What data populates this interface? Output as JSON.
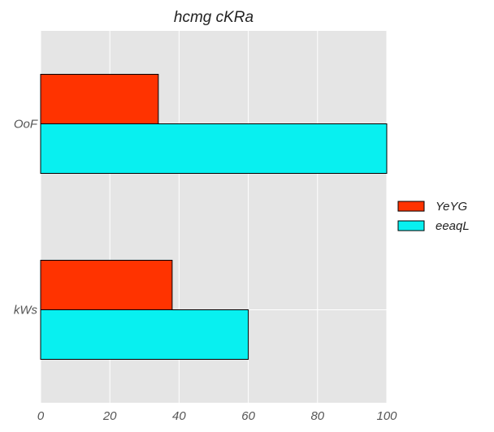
{
  "chart_data": {
    "type": "bar",
    "orientation": "horizontal",
    "title": "hcmg cKRa",
    "xlabel": "",
    "ylabel": "",
    "categories": [
      "OoF",
      "kWs"
    ],
    "series": [
      {
        "name": "YeYG",
        "color": "#ff3300",
        "values": [
          34,
          38
        ]
      },
      {
        "name": "eeaqL",
        "color": "#08f0f0",
        "values": [
          100,
          60
        ]
      }
    ],
    "xlim": [
      0,
      100
    ],
    "xticks": [
      0,
      20,
      40,
      60,
      80,
      100
    ],
    "grid": true,
    "legend_position": "right"
  }
}
